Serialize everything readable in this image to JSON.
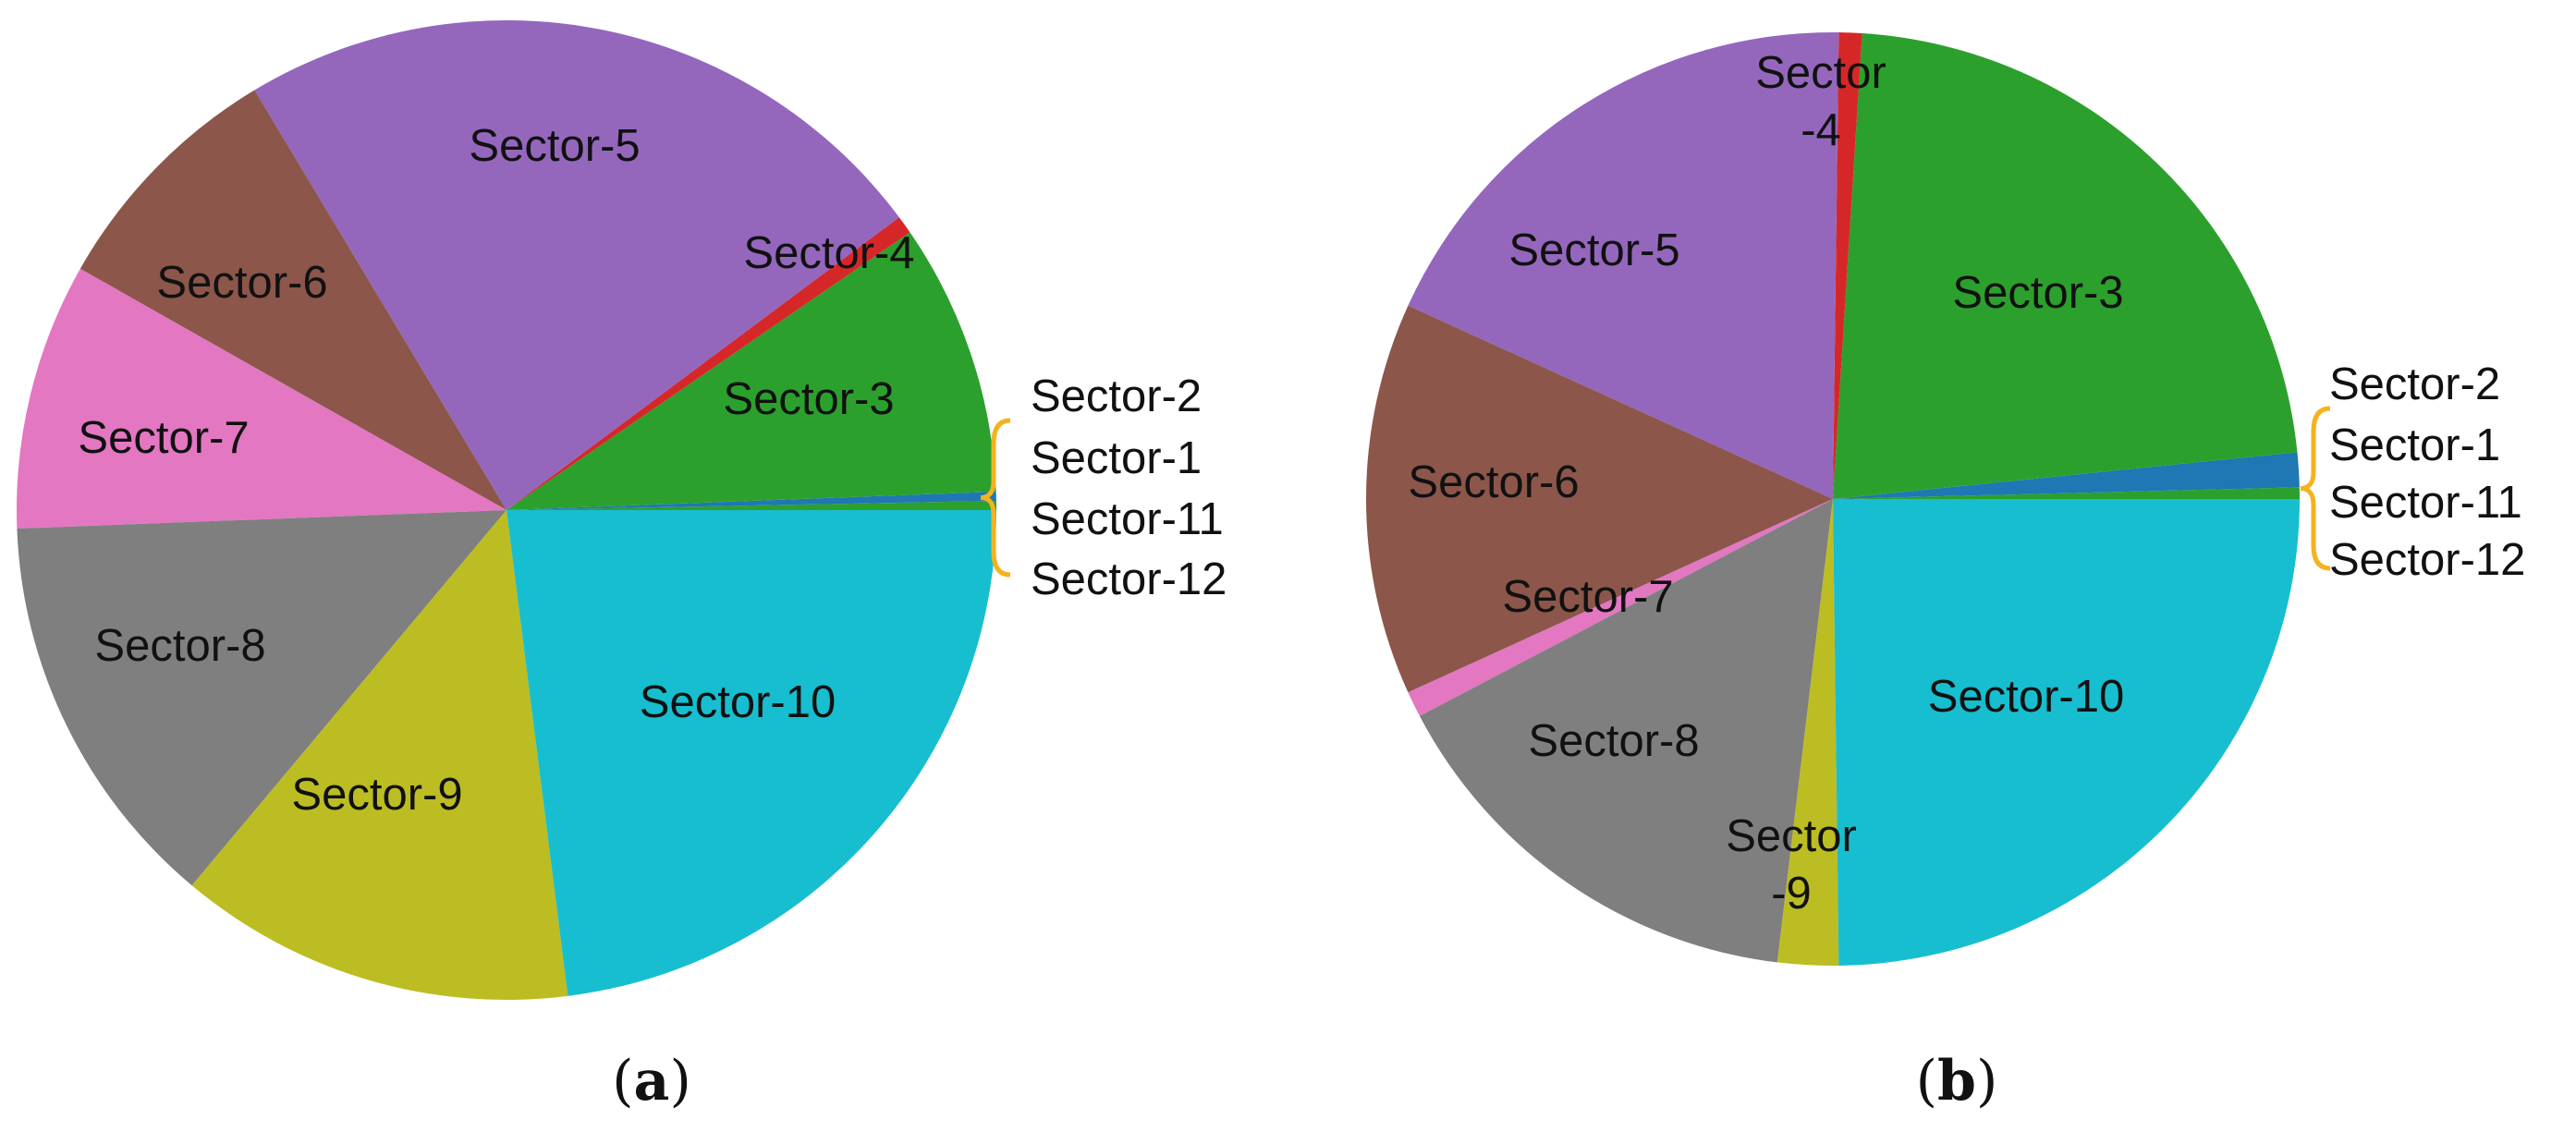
{
  "chart_data": [
    {
      "type": "pie",
      "panel": "a",
      "caption_open": "(",
      "caption_letter": "a",
      "caption_close": ")",
      "slices": [
        {
          "label": "Sector-1",
          "value": 0.3,
          "color": "#2ca02c"
        },
        {
          "label": "Sector-2",
          "value": 0.3,
          "color": "#1f77b4"
        },
        {
          "label": "Sector-3",
          "value": 9.0,
          "color": "#2ca02c"
        },
        {
          "label": "Sector-4",
          "value": 0.6,
          "color": "#d62728"
        },
        {
          "label": "Sector-5",
          "value": 23.4,
          "color": "#9467bd"
        },
        {
          "label": "Sector-6",
          "value": 8.2,
          "color": "#8c564b"
        },
        {
          "label": "Sector-7",
          "value": 8.8,
          "color": "#e377c2"
        },
        {
          "label": "Sector-8",
          "value": 13.3,
          "color": "#7f7f7f"
        },
        {
          "label": "Sector-9",
          "value": 13.1,
          "color": "#bcbd22"
        },
        {
          "label": "Sector-10",
          "value": 23.0,
          "color": "#17becf"
        },
        {
          "label": "Sector-11",
          "value": 0.0,
          "color": "#17becf"
        },
        {
          "label": "Sector-12",
          "value": 0.0,
          "color": "#17becf"
        }
      ],
      "grouped_labels": [
        "Sector-2",
        "Sector-1",
        "Sector-11",
        "Sector-12"
      ],
      "label_texts": {
        "Sector-3": "Sector-3",
        "Sector-4": "Sector-4",
        "Sector-5": "Sector-5",
        "Sector-6": "Sector-6",
        "Sector-7": "Sector-7",
        "Sector-8": "Sector-8",
        "Sector-9": "Sector-9",
        "Sector-10": "Sector-10"
      }
    },
    {
      "type": "pie",
      "panel": "b",
      "caption_open": "(",
      "caption_letter": "b",
      "caption_close": ")",
      "slices": [
        {
          "label": "Sector-1",
          "value": 0.4,
          "color": "#2ca02c"
        },
        {
          "label": "Sector-2",
          "value": 1.2,
          "color": "#1f77b4"
        },
        {
          "label": "Sector-3",
          "value": 22.4,
          "color": "#2ca02c"
        },
        {
          "label": "Sector-4",
          "value": 0.8,
          "color": "#d62728"
        },
        {
          "label": "Sector-5",
          "value": 18.4,
          "color": "#9467bd"
        },
        {
          "label": "Sector-6",
          "value": 13.6,
          "color": "#8c564b"
        },
        {
          "label": "Sector-7",
          "value": 0.9,
          "color": "#e377c2"
        },
        {
          "label": "Sector-8",
          "value": 15.4,
          "color": "#7f7f7f"
        },
        {
          "label": "Sector-9",
          "value": 2.1,
          "color": "#bcbd22"
        },
        {
          "label": "Sector-10",
          "value": 24.8,
          "color": "#17becf"
        },
        {
          "label": "Sector-11",
          "value": 0.0,
          "color": "#17becf"
        },
        {
          "label": "Sector-12",
          "value": 0.0,
          "color": "#17becf"
        }
      ],
      "grouped_labels": [
        "Sector-2",
        "Sector-1",
        "Sector-11",
        "Sector-12"
      ],
      "label_texts": {
        "Sector-3": "Sector-3",
        "Sector-4": "Sector\n-4",
        "Sector-5": "Sector-5",
        "Sector-6": "Sector-6",
        "Sector-7": "Sector-7",
        "Sector-8": "Sector-8",
        "Sector-9": "Sector\n-9",
        "Sector-10": "Sector-10"
      }
    }
  ],
  "colors": {
    "bracket": "#f5b21e",
    "text": "#111111"
  }
}
